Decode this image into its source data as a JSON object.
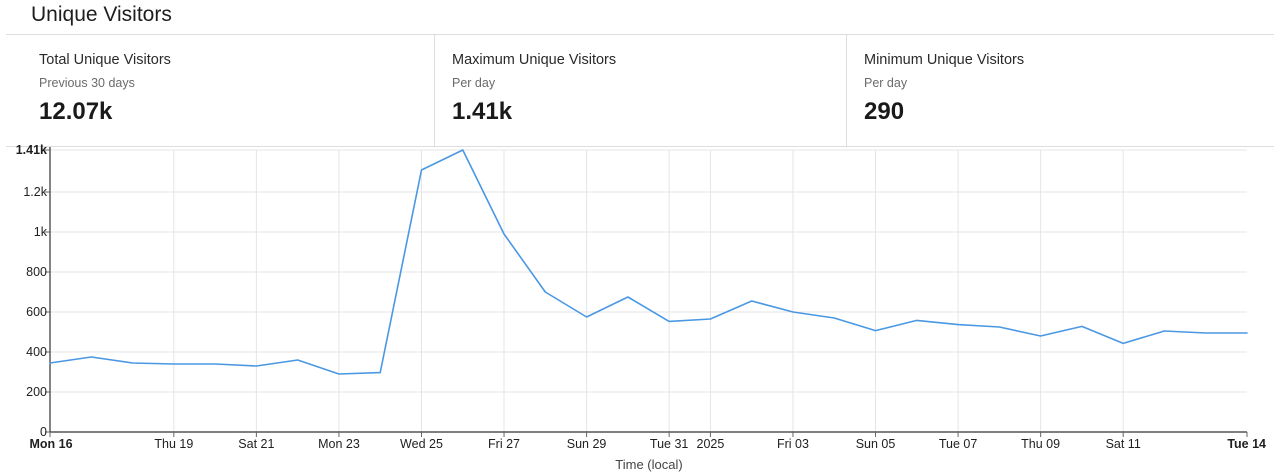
{
  "page_title": "Unique Visitors",
  "stats": [
    {
      "label": "Total Unique Visitors",
      "sublabel": "Previous 30 days",
      "value": "12.07k"
    },
    {
      "label": "Maximum Unique Visitors",
      "sublabel": "Per day",
      "value": "1.41k"
    },
    {
      "label": "Minimum Unique Visitors",
      "sublabel": "Per day",
      "value": "290"
    }
  ],
  "colors": {
    "line": "#4a98e3",
    "grid": "#e5e5e5",
    "axis": "#333333",
    "text": "#1f1f1f"
  },
  "chart_data": {
    "type": "line",
    "title": "",
    "xlabel": "Time (local)",
    "ylabel": "",
    "x_type": "date",
    "ylim": [
      0,
      1410
    ],
    "y_ticks": [
      0,
      200,
      400,
      600,
      800,
      1000,
      1200,
      1410
    ],
    "y_tick_labels": [
      "0",
      "200",
      "400",
      "600",
      "800",
      "1k",
      "1.2k",
      "1.41k"
    ],
    "x_range": [
      "2024-12-16",
      "2025-01-14"
    ],
    "x_ticks": [
      {
        "date": "2024-12-16",
        "label": "Mon 16",
        "bold": true
      },
      {
        "date": "2024-12-19",
        "label": "Thu 19"
      },
      {
        "date": "2024-12-21",
        "label": "Sat 21"
      },
      {
        "date": "2024-12-23",
        "label": "Mon 23"
      },
      {
        "date": "2024-12-25",
        "label": "Wed 25"
      },
      {
        "date": "2024-12-27",
        "label": "Fri 27"
      },
      {
        "date": "2024-12-29",
        "label": "Sun 29"
      },
      {
        "date": "2024-12-31",
        "label": "Tue 31"
      },
      {
        "date": "2025-01-01",
        "label": "2025"
      },
      {
        "date": "2025-01-03",
        "label": "Fri 03"
      },
      {
        "date": "2025-01-05",
        "label": "Sun 05"
      },
      {
        "date": "2025-01-07",
        "label": "Tue 07"
      },
      {
        "date": "2025-01-09",
        "label": "Thu 09"
      },
      {
        "date": "2025-01-11",
        "label": "Sat 11"
      },
      {
        "date": "2025-01-14",
        "label": "Tue 14",
        "bold": true
      }
    ],
    "grid": true,
    "legend": "none",
    "series": [
      {
        "x": [
          "2024-12-16",
          "2024-12-17",
          "2024-12-18",
          "2024-12-19",
          "2024-12-20",
          "2024-12-21",
          "2024-12-22",
          "2024-12-23",
          "2024-12-24",
          "2024-12-25",
          "2024-12-26",
          "2024-12-27",
          "2024-12-28",
          "2024-12-29",
          "2024-12-30",
          "2024-12-31",
          "2025-01-01",
          "2025-01-02",
          "2025-01-03",
          "2025-01-04",
          "2025-01-05",
          "2025-01-06",
          "2025-01-07",
          "2025-01-08",
          "2025-01-09",
          "2025-01-10",
          "2025-01-11",
          "2025-01-12",
          "2025-01-13",
          "2025-01-14"
        ],
        "y": [
          345,
          375,
          345,
          340,
          340,
          330,
          360,
          290,
          297,
          1310,
          1410,
          990,
          700,
          575,
          675,
          553,
          565,
          655,
          600,
          570,
          507,
          558,
          537,
          525,
          480,
          528,
          443,
          505,
          495,
          495
        ]
      }
    ]
  }
}
